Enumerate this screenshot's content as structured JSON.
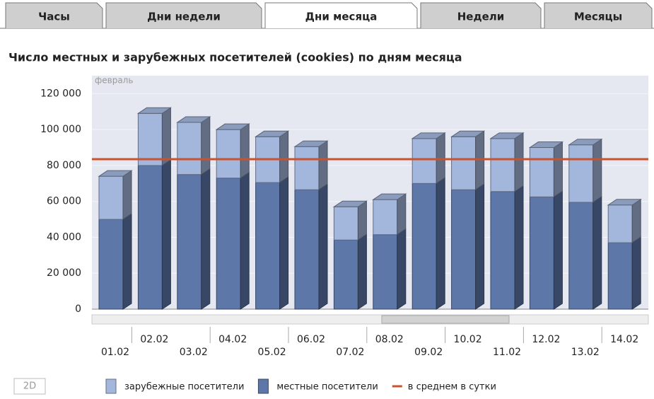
{
  "tabs": [
    "Часы",
    "Дни недели",
    "Дни месяца",
    "Недели",
    "Месяцы"
  ],
  "active_tab": 2,
  "mode_button": "2D",
  "chart_data": {
    "type": "bar",
    "stacked": true,
    "title": "Число местных и зарубежных посетителей (cookies) по дням месяца",
    "subtitle": "февраль",
    "categories": [
      "01.02",
      "02.02",
      "03.02",
      "04.02",
      "05.02",
      "06.02",
      "07.02",
      "08.02",
      "09.02",
      "10.02",
      "11.02",
      "12.02",
      "13.02",
      "14.02"
    ],
    "series": [
      {
        "name": "зарубежные посетители",
        "color": "#a3b6dc",
        "values": [
          24000,
          29000,
          29000,
          27000,
          25500,
          24000,
          18500,
          19500,
          25000,
          29500,
          29500,
          27500,
          32000,
          21000
        ]
      },
      {
        "name": "местные посетители",
        "color": "#5d77a8",
        "values": [
          50000,
          80000,
          75000,
          73000,
          70500,
          66500,
          38500,
          41500,
          70000,
          66500,
          65500,
          62500,
          59500,
          37000
        ]
      }
    ],
    "average": {
      "name": "в среднем в сутки",
      "color": "#c8532f",
      "value": 83500
    },
    "ylim": [
      0,
      130000
    ],
    "yticks": [
      0,
      {
        "value": 20000,
        "label": "20 000"
      },
      {
        "value": 40000,
        "label": "40 000"
      },
      {
        "value": 60000,
        "label": "60 000"
      },
      {
        "value": 80000,
        "label": "80 000"
      },
      {
        "value": 100000,
        "label": "100 000"
      },
      {
        "value": 120000,
        "label": "120 000"
      }
    ],
    "grid": true
  }
}
